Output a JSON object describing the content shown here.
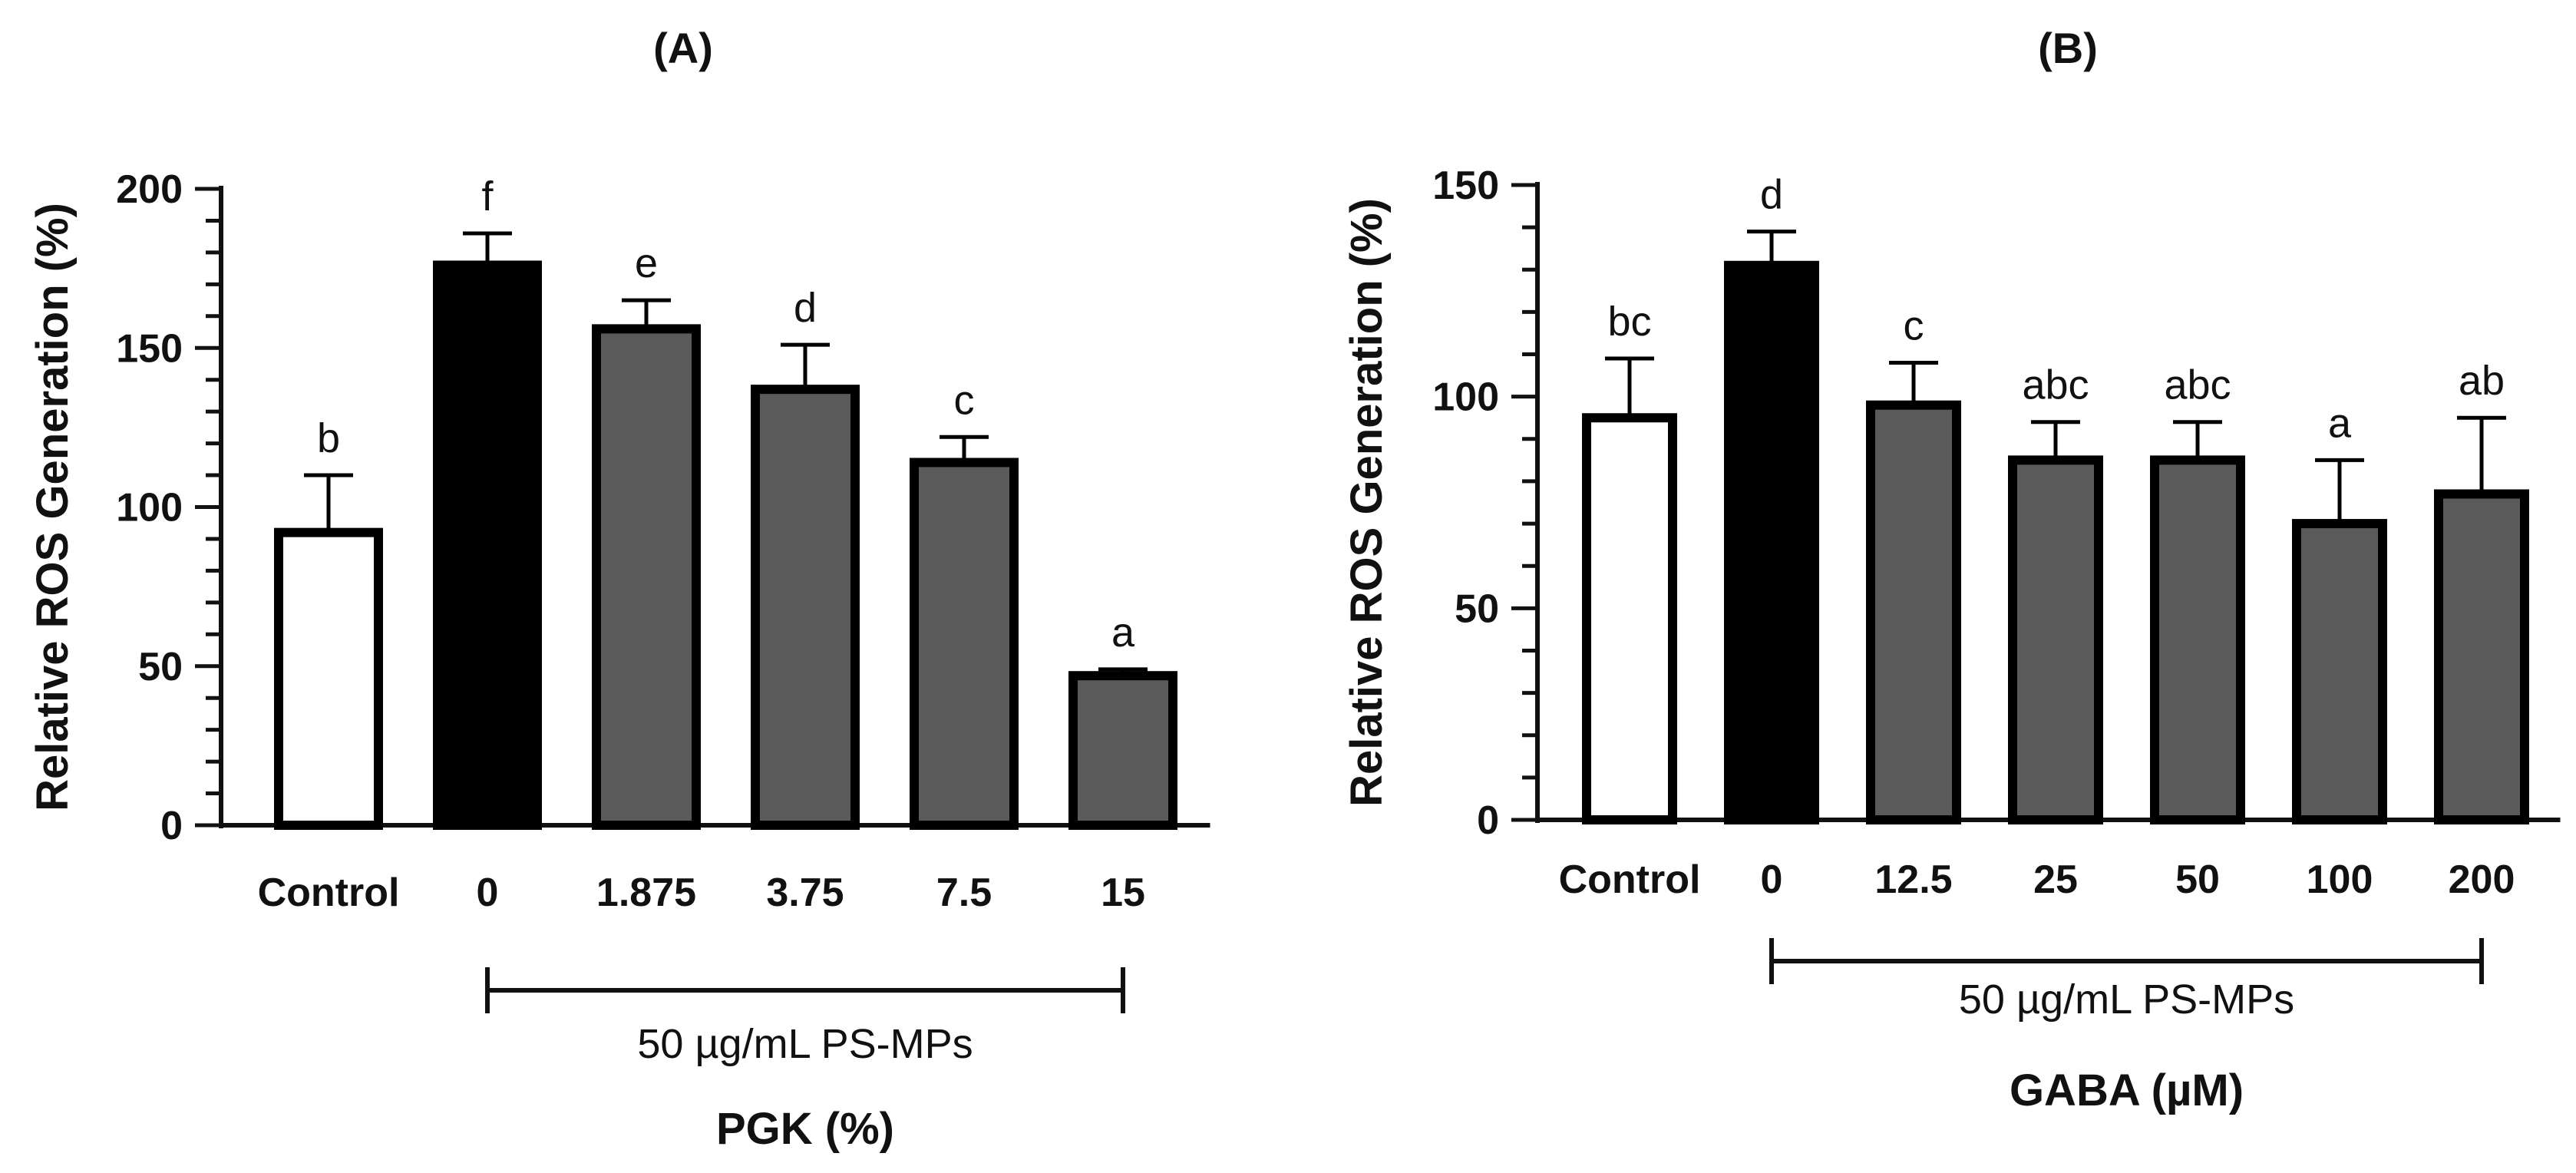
{
  "chart_data": [
    {
      "type": "bar",
      "title": "(A)",
      "ylabel": "Relative ROS Generation (%)",
      "xlabel": "PGK (%)",
      "bracket_label": "50 µg/mL PS-MPs",
      "categories": [
        "Control",
        "0",
        "1.875",
        "3.75",
        "7.5",
        "15"
      ],
      "values": [
        92,
        176,
        156,
        137,
        114,
        47
      ],
      "errors": [
        18,
        10,
        9,
        14,
        8,
        2
      ],
      "significance": [
        "b",
        "f",
        "e",
        "d",
        "c",
        "a"
      ],
      "bar_fills": [
        "#ffffff",
        "#000000",
        "#5a5a5a",
        "#5a5a5a",
        "#5a5a5a",
        "#5a5a5a"
      ],
      "ylim": [
        0,
        200
      ],
      "yticks": [
        0,
        50,
        100,
        150,
        200
      ],
      "bracket_from": "0",
      "bracket_to": "15",
      "grid": false
    },
    {
      "type": "bar",
      "title": "(B)",
      "ylabel": "Relative ROS Generation (%)",
      "xlabel": "GABA (µM)",
      "bracket_label": "50 µg/mL PS-MPs",
      "categories": [
        "Control",
        "0",
        "12.5",
        "25",
        "50",
        "100",
        "200"
      ],
      "values": [
        95,
        131,
        98,
        85,
        85,
        70,
        77
      ],
      "errors": [
        14,
        8,
        10,
        9,
        9,
        15,
        18
      ],
      "significance": [
        "bc",
        "d",
        "c",
        "abc",
        "abc",
        "a",
        "ab"
      ],
      "bar_fills": [
        "#ffffff",
        "#000000",
        "#5a5a5a",
        "#5a5a5a",
        "#5a5a5a",
        "#5a5a5a",
        "#5a5a5a"
      ],
      "ylim": [
        0,
        150
      ],
      "yticks": [
        0,
        50,
        100,
        150
      ],
      "bracket_from": "0",
      "bracket_to": "200",
      "grid": false
    }
  ]
}
